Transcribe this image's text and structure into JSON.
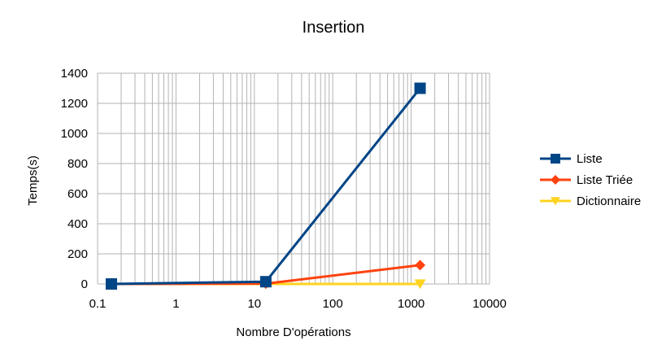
{
  "chart_data": {
    "type": "line",
    "title": "Insertion",
    "xlabel": "Nombre D'opérations",
    "ylabel": "Temps(s)",
    "x_scale": "log",
    "xlim": [
      0.1,
      10000
    ],
    "ylim": [
      0,
      1400
    ],
    "x_ticks": [
      "0.1",
      "1",
      "10",
      "100",
      "1000",
      "10000"
    ],
    "y_ticks": [
      "0",
      "200",
      "400",
      "600",
      "800",
      "1000",
      "1200",
      "1400"
    ],
    "grid": true,
    "legend_position": "right",
    "x": [
      0.15,
      14,
      1300
    ],
    "series": [
      {
        "name": "Liste",
        "values": [
          0,
          15,
          1300
        ],
        "color": "#004586",
        "marker": "square"
      },
      {
        "name": "Liste Triée",
        "values": [
          0,
          2,
          125
        ],
        "color": "#ff420e",
        "marker": "diamond"
      },
      {
        "name": "Dictionnaire",
        "values": [
          0,
          0,
          0
        ],
        "color": "#ffd320",
        "marker": "triangle-down"
      }
    ]
  }
}
